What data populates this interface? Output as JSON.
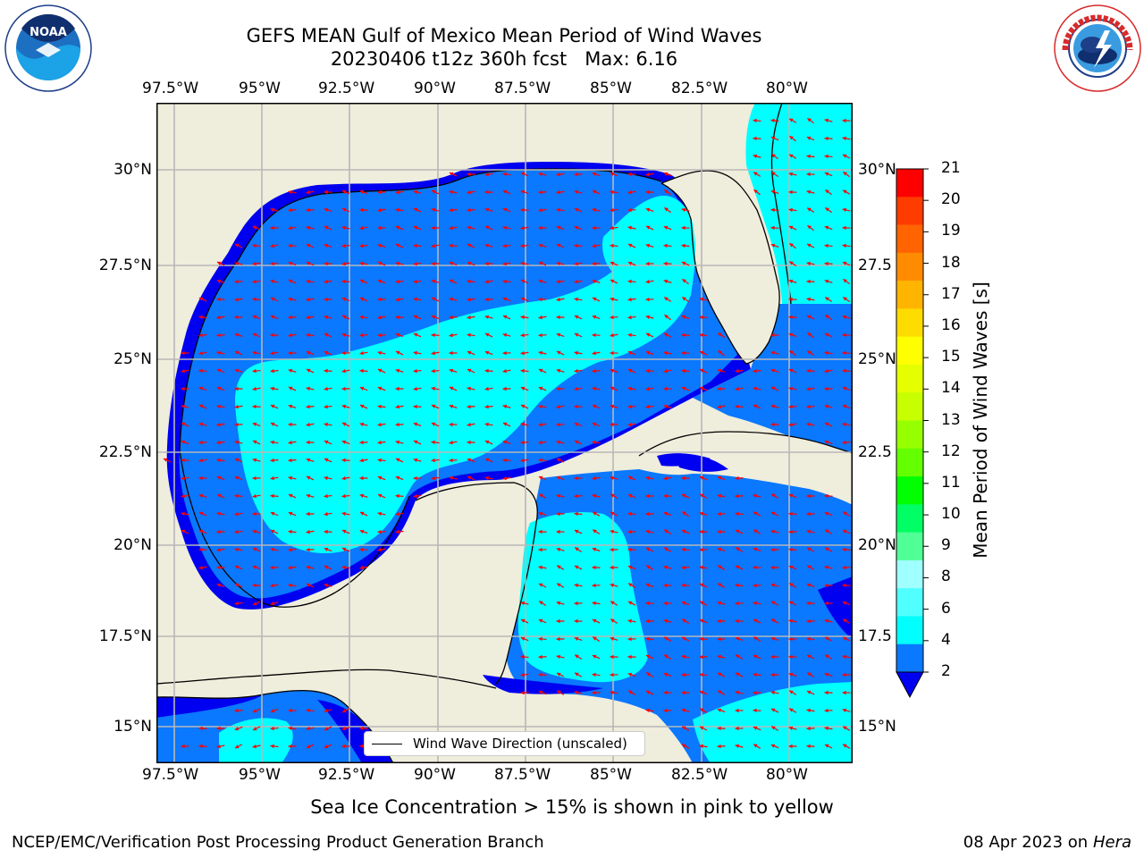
{
  "title": {
    "line1": "GEFS MEAN Gulf of Mexico Mean Period of Wind Waves",
    "line2": "20230406 t12z 360h fcst   Max: 6.16"
  },
  "logos": {
    "left": "NOAA",
    "left_ring_text": "NATIONAL OCEANIC AND ATMOSPHERIC ADMINISTRATION · U.S. DEPARTMENT OF COMMERCE",
    "right_ring_text": "NATIONAL WEATHER SERVICE"
  },
  "map": {
    "lon_labels": [
      "97.5°W",
      "95°W",
      "92.5°W",
      "90°W",
      "87.5°W",
      "85°W",
      "82.5°W",
      "80°W"
    ],
    "lat_labels_left": [
      "30°N",
      "27.5°N",
      "25°N",
      "22.5°N",
      "20°N",
      "17.5°N",
      "15°N"
    ],
    "lat_labels_right": [
      "30°N",
      "27.5",
      "25°N",
      "22.5",
      "20°N",
      "17.5",
      "15°N"
    ],
    "extent": {
      "lon": [
        -98.0,
        -78.2
      ],
      "lat": [
        14.0,
        31.8
      ]
    },
    "legend_label": "Wind Wave Direction (unscaled)",
    "colors": {
      "land": "#efeddc",
      "water_2_4": "#0a78ff",
      "water_4_6": "#00ffff",
      "water_lt_2": "#0000f0",
      "arrow": "#ff0000",
      "grid": "#b8b8b8"
    }
  },
  "colorbar": {
    "label": "Mean Period of Wind Waves [s]",
    "ticks": [
      "21",
      "20",
      "19",
      "18",
      "17",
      "16",
      "15",
      "14",
      "13",
      "12",
      "11",
      "10",
      "9",
      "8",
      "6",
      "4",
      "2"
    ],
    "colors": [
      "#ff0000",
      "#ff3c00",
      "#ff6400",
      "#ff8c00",
      "#ffb400",
      "#ffdc00",
      "#ffff00",
      "#e6ff00",
      "#c8ff00",
      "#96ff00",
      "#64ff00",
      "#00ff00",
      "#00ff64",
      "#50ff96",
      "#a0ffff",
      "#50ffff",
      "#00ffff",
      "#0a78ff"
    ],
    "under_color": "#0000f0"
  },
  "footer": {
    "note": "Sea Ice Concentration > 15% is shown in pink to yellow",
    "org": "NCEP/EMC/Verification Post Processing Product Generation Branch",
    "date": "08 Apr 2023 on",
    "machine": "Hera"
  }
}
